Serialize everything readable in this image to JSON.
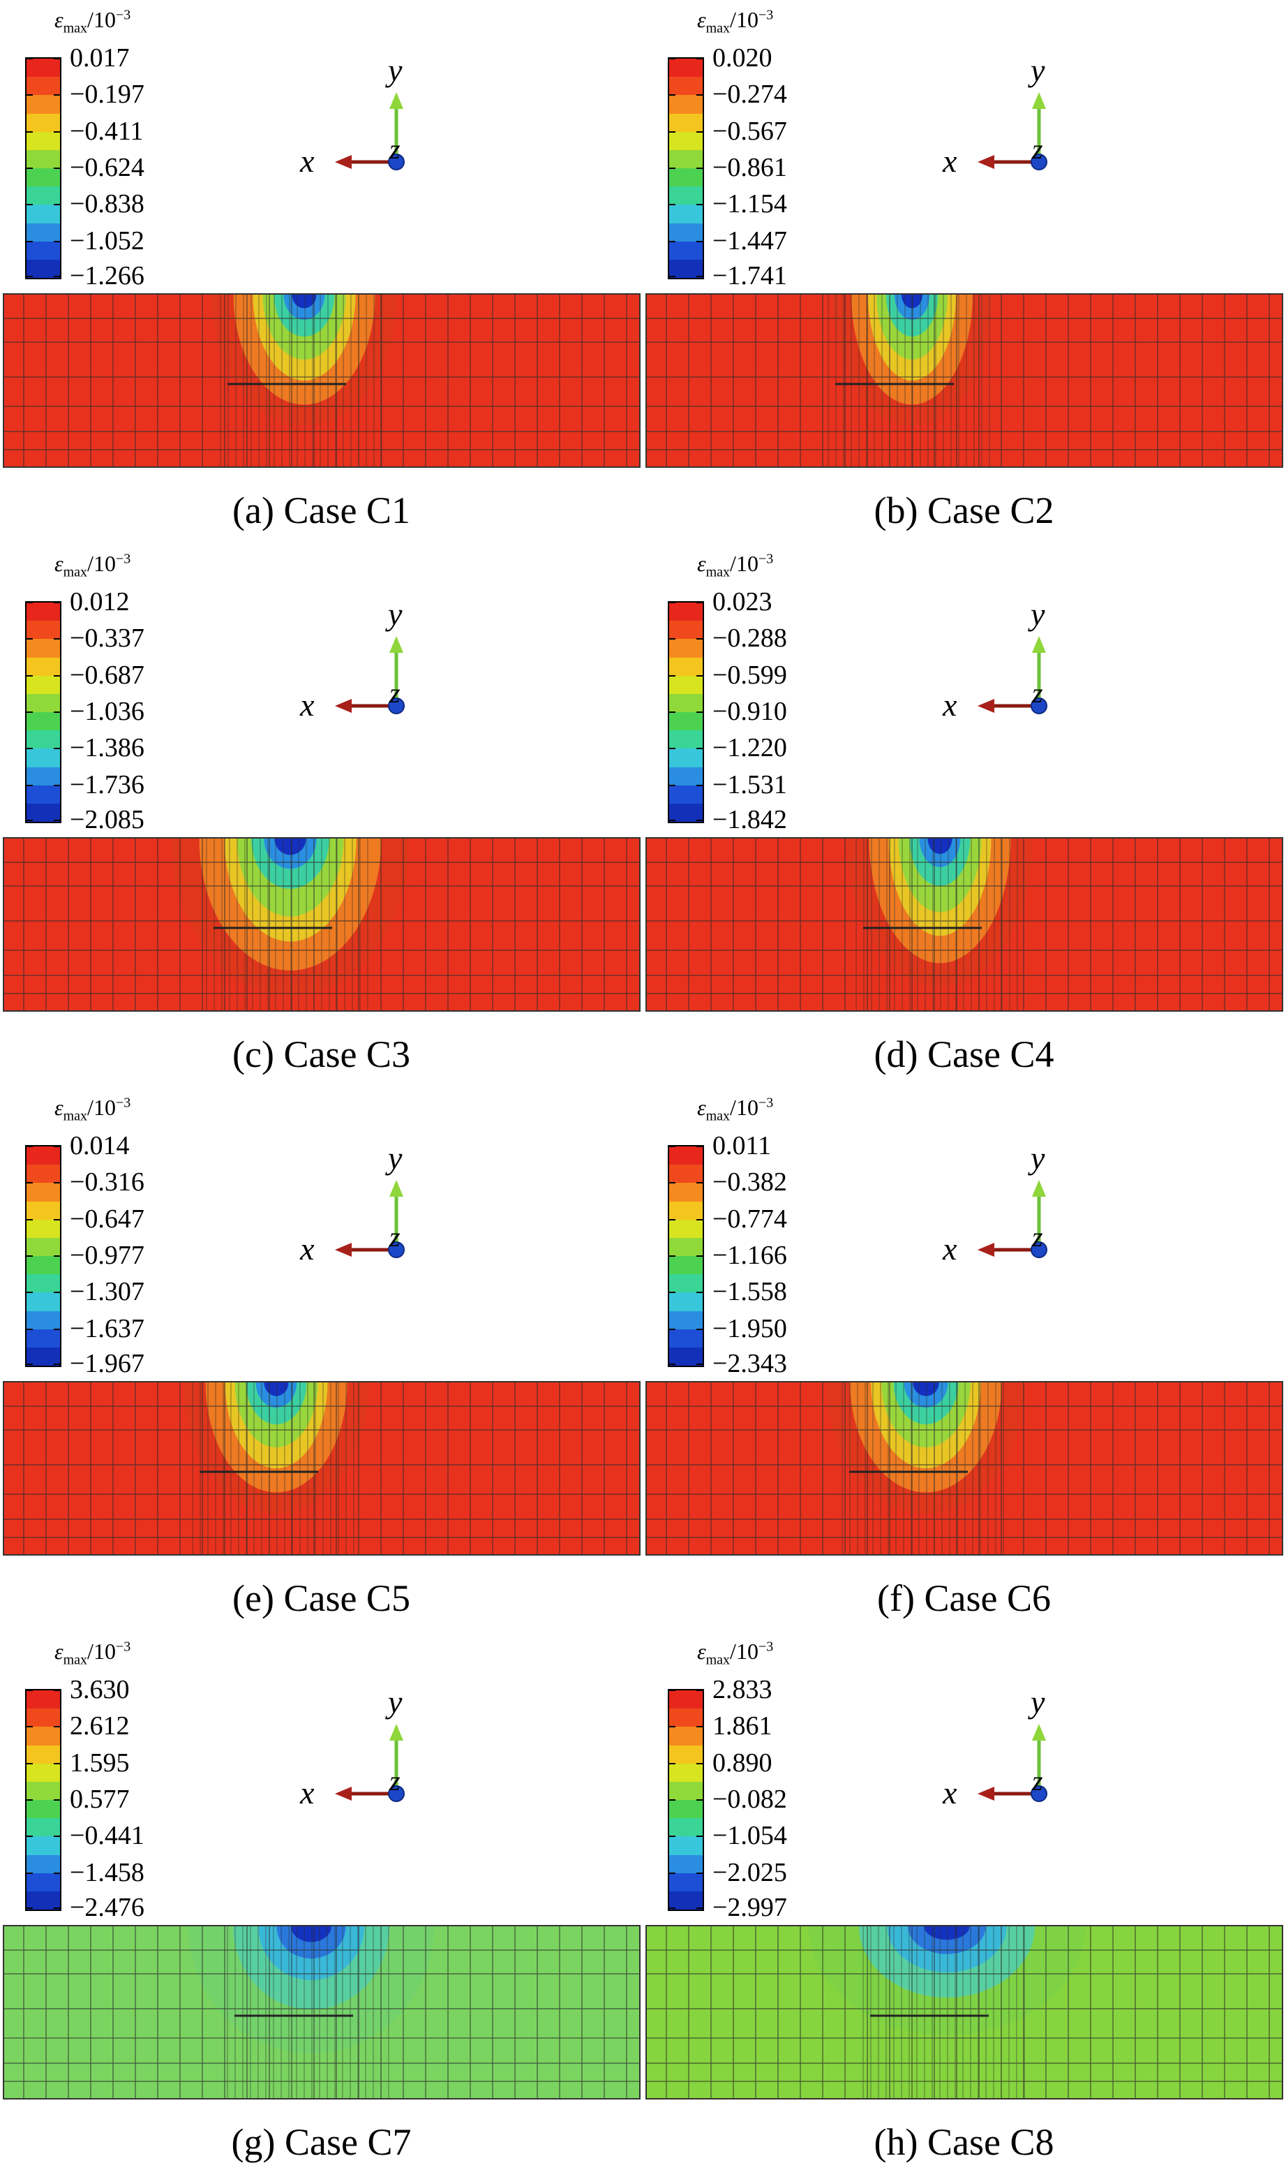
{
  "legend": {
    "symbol": "ε",
    "subscript": "max",
    "unit": "/10",
    "exponent": "−3"
  },
  "axes": {
    "x": "x",
    "y": "y",
    "z": "z"
  },
  "colors": {
    "scale": [
      "#e8261c",
      "#f04a1c",
      "#f58a1e",
      "#f5c51f",
      "#d7e41f",
      "#8fd93a",
      "#4cd250",
      "#3ad497",
      "#38c6db",
      "#2b8de0",
      "#1c4fd6",
      "#1330b8"
    ],
    "field_red": "#e8321e",
    "field_green": "#7ed448",
    "grid": "#2a2a2a"
  },
  "panels": [
    {
      "caption": "(a) Case C1",
      "ticks": [
        "0.017",
        "−0.197",
        "−0.411",
        "−0.624",
        "−0.838",
        "−1.052",
        "−1.266"
      ]
    },
    {
      "caption": "(b) Case C2",
      "ticks": [
        "0.020",
        "−0.274",
        "−0.567",
        "−0.861",
        "−1.154",
        "−1.447",
        "−1.741"
      ]
    },
    {
      "caption": "(c) Case C3",
      "ticks": [
        "0.012",
        "−0.337",
        "−0.687",
        "−1.036",
        "−1.386",
        "−1.736",
        "−2.085"
      ]
    },
    {
      "caption": "(d) Case C4",
      "ticks": [
        "0.023",
        "−0.288",
        "−0.599",
        "−0.910",
        "−1.220",
        "−1.531",
        "−1.842"
      ]
    },
    {
      "caption": "(e) Case C5",
      "ticks": [
        "0.014",
        "−0.316",
        "−0.647",
        "−0.977",
        "−1.307",
        "−1.637",
        "−1.967"
      ]
    },
    {
      "caption": "(f) Case C6",
      "ticks": [
        "0.011",
        "−0.382",
        "−0.774",
        "−1.166",
        "−1.558",
        "−1.950",
        "−2.343"
      ]
    },
    {
      "caption": "(g) Case C7",
      "ticks": [
        "3.630",
        "2.612",
        "1.595",
        "0.577",
        "−0.441",
        "−1.458",
        "−2.476"
      ]
    },
    {
      "caption": "(h) Case C8",
      "ticks": [
        "2.833",
        "1.861",
        "0.890",
        "−0.082",
        "−1.054",
        "−2.025",
        "−2.997"
      ]
    }
  ]
}
